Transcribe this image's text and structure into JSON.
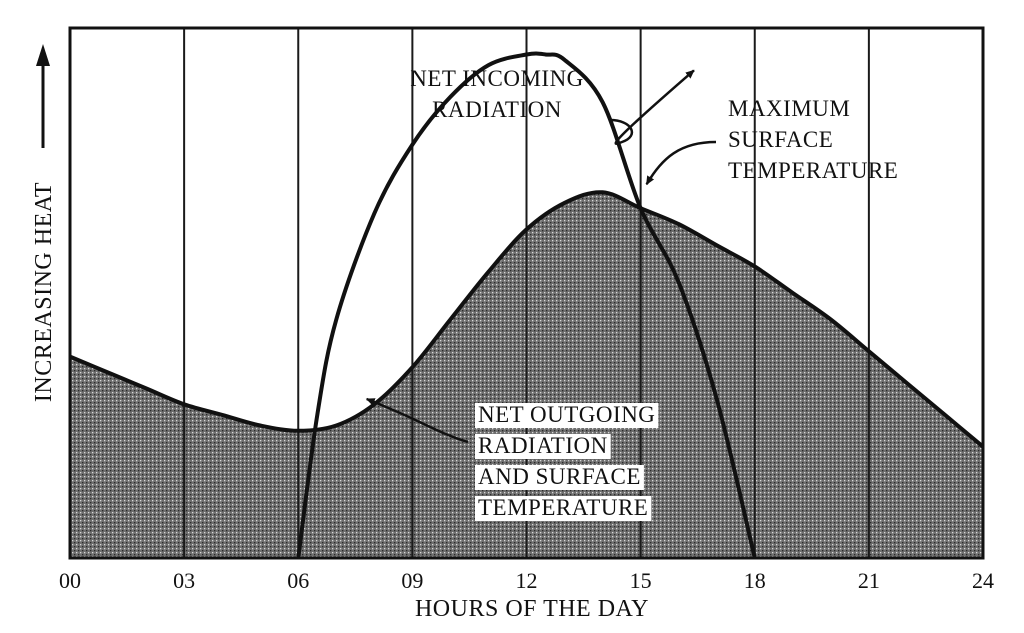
{
  "chart_data": {
    "type": "line",
    "title": "",
    "xlabel": "HOURS OF THE DAY",
    "ylabel": "INCREASING HEAT",
    "xlim": [
      0,
      24
    ],
    "ylim": [
      0,
      100
    ],
    "x_ticks": [
      0,
      3,
      6,
      9,
      12,
      15,
      18,
      21,
      24
    ],
    "x_tick_labels": [
      "00",
      "03",
      "06",
      "09",
      "12",
      "15",
      "18",
      "21",
      "24"
    ],
    "grid": "vertical",
    "series": [
      {
        "name": "NET OUTGOING RADIATION AND SURFACE TEMPERATURE",
        "style": "shaded-area",
        "x": [
          0,
          1,
          2,
          3,
          4,
          5,
          6,
          7,
          8,
          9,
          10,
          11,
          12,
          13,
          14,
          15,
          16,
          17,
          18,
          19,
          20,
          21,
          22,
          23,
          24
        ],
        "y": [
          38,
          35,
          32,
          29,
          27,
          25,
          24,
          25,
          29,
          36,
          45,
          54,
          62,
          67,
          69,
          66,
          63,
          59,
          55,
          50,
          45,
          39,
          33,
          27,
          21
        ]
      },
      {
        "name": "NET INCOMING RADIATION",
        "style": "line",
        "x": [
          6,
          6.5,
          7,
          8,
          9,
          10,
          11,
          12,
          12.5,
          13,
          14,
          15,
          16,
          17,
          18
        ],
        "y": [
          0,
          27,
          45,
          65,
          78,
          87,
          93,
          95,
          95,
          94,
          86,
          66,
          52,
          30,
          0
        ]
      }
    ],
    "annotations": [
      {
        "text_lines": [
          "NET INCOMING",
          "RADIATION"
        ],
        "points_to": "NET INCOMING RADIATION",
        "x": 16.4,
        "y": 92
      },
      {
        "text_lines": [
          "MAXIMUM",
          "SURFACE",
          "TEMPERATURE"
        ],
        "points_to": "intersection",
        "x": 15,
        "y": 69
      },
      {
        "text_lines": [
          "NET OUTGOING",
          "RADIATION",
          "AND SURFACE",
          "TEMPERATURE"
        ],
        "points_to": "NET OUTGOING RADIATION AND SURFACE TEMPERATURE",
        "x": 7.8,
        "y": 30
      }
    ]
  }
}
